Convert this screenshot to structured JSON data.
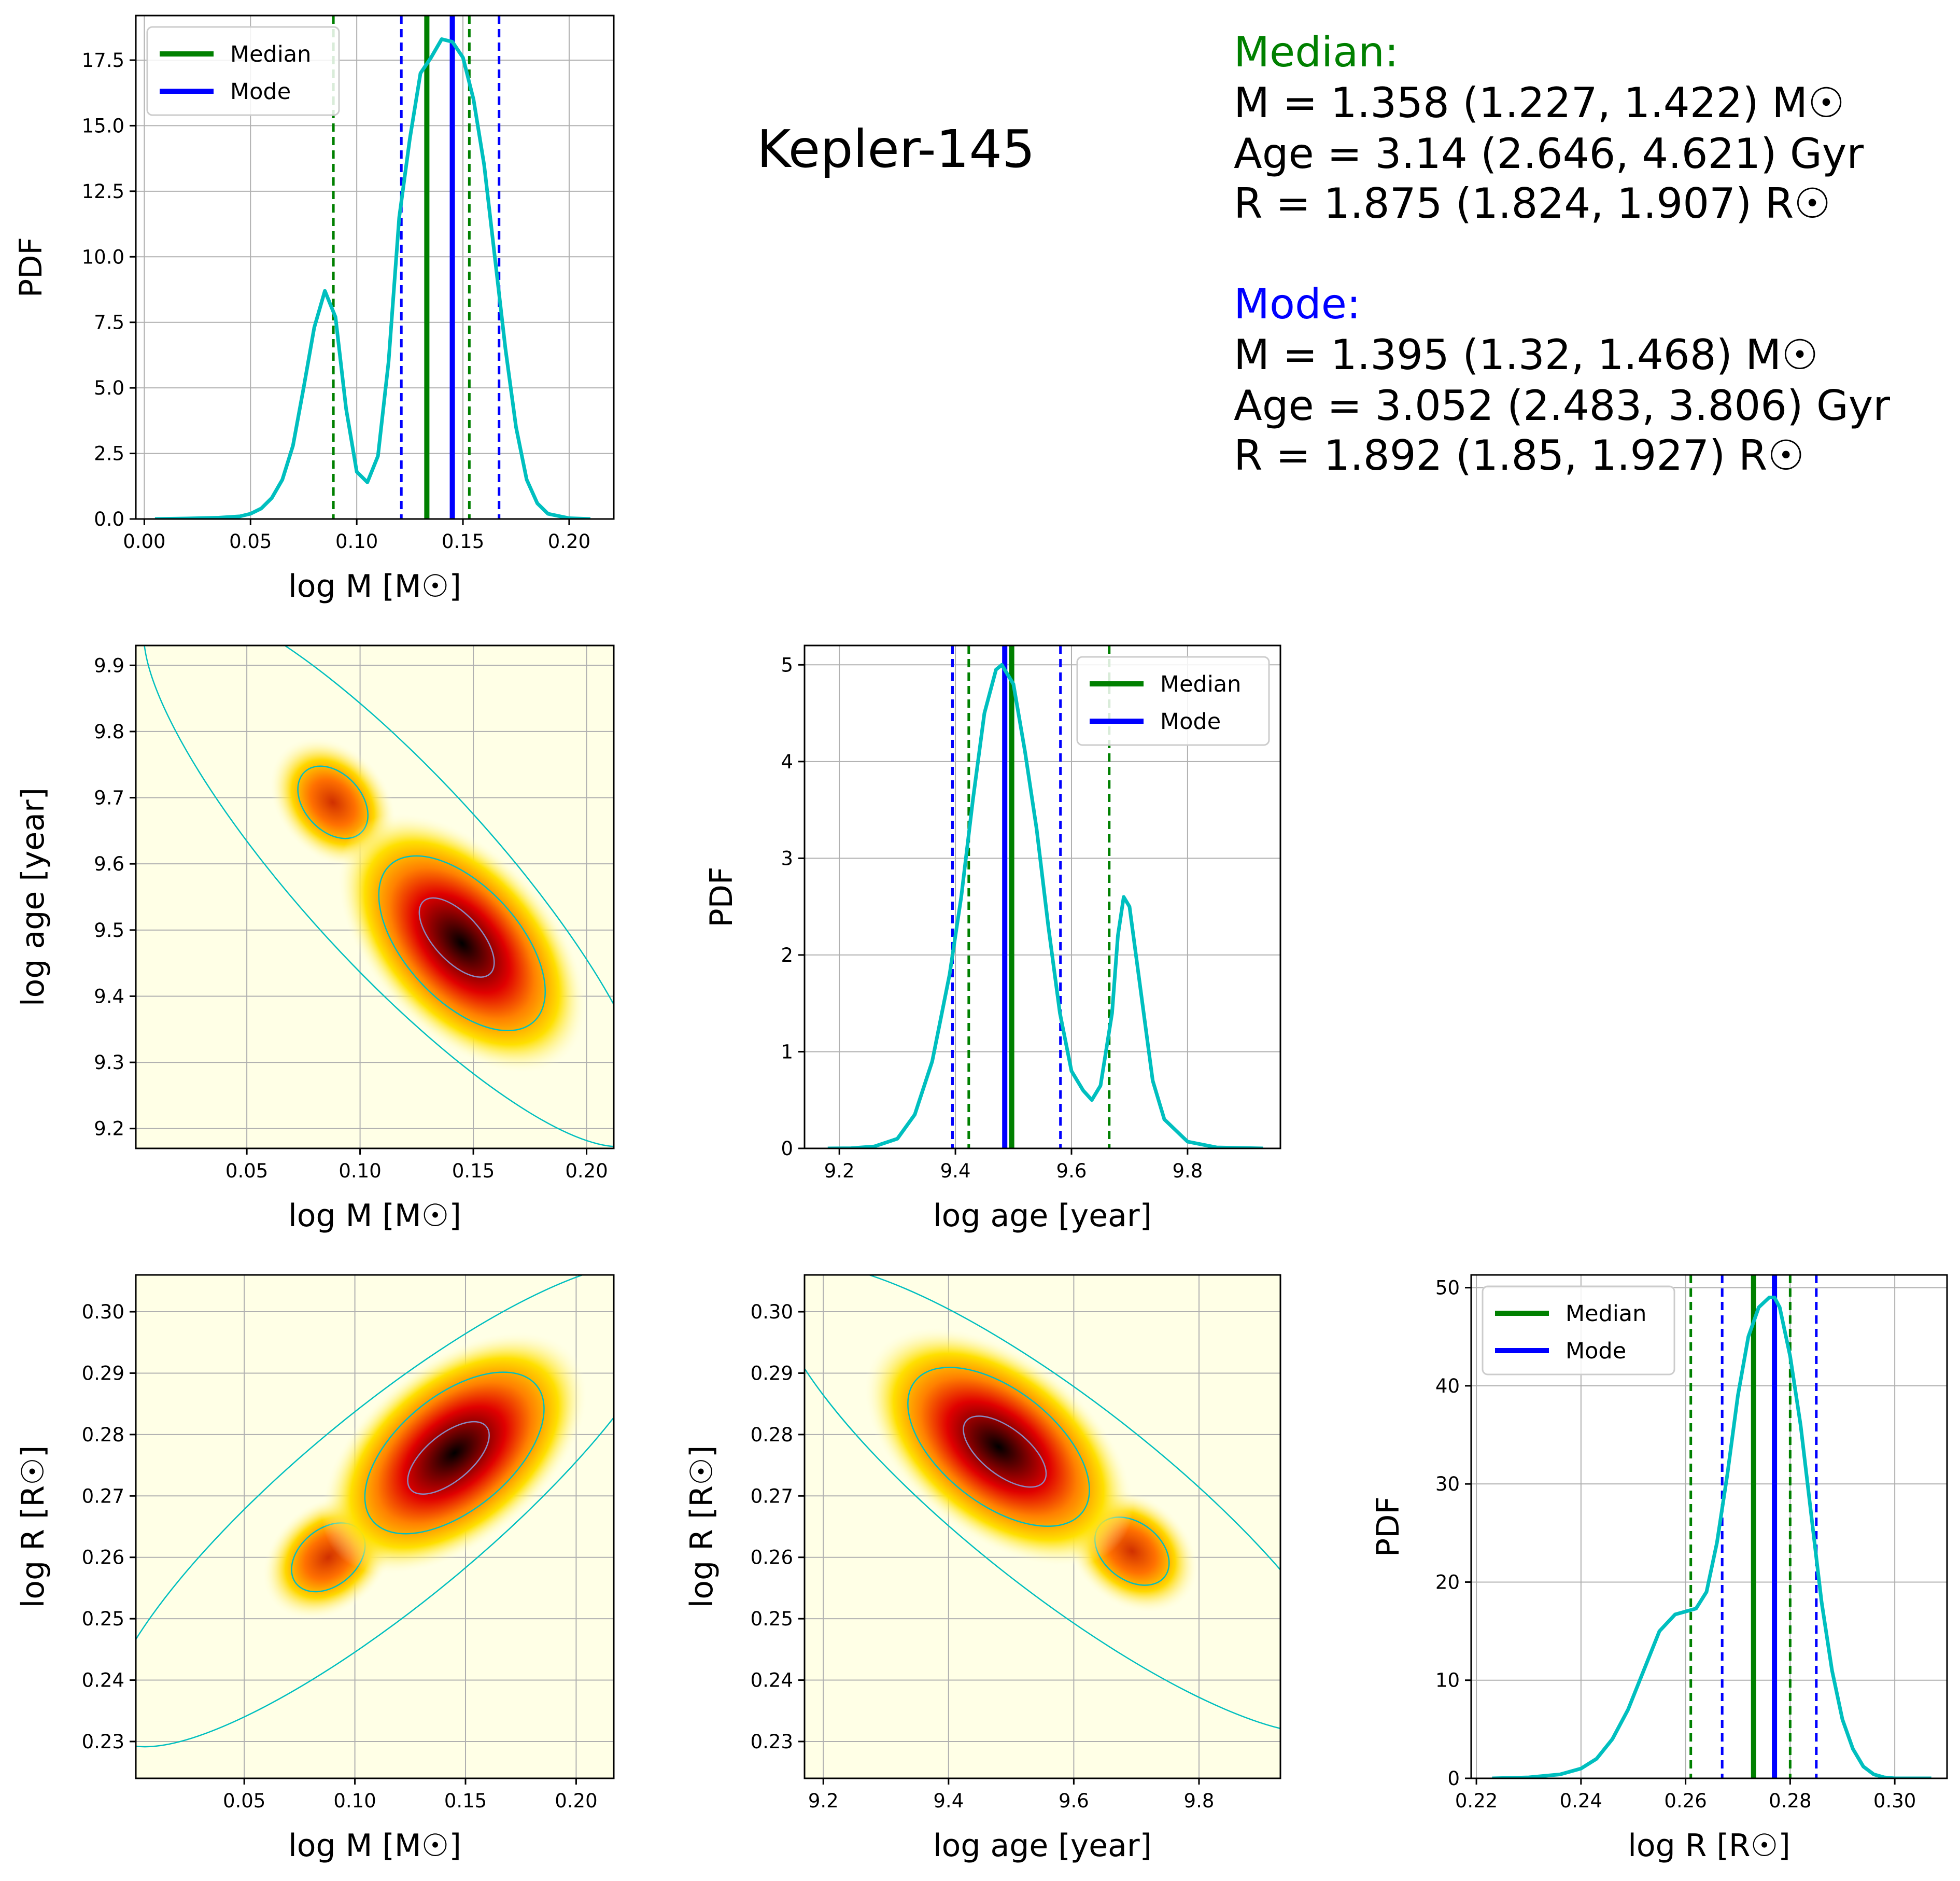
{
  "title": "Kepler-145",
  "colors": {
    "median": "#008000",
    "mode": "#0000ff",
    "pdf": "#00bfbf",
    "grid": "#b0b0b0",
    "contour": "#00bfbf"
  },
  "labels": {
    "logM": "log M [M☉]",
    "logAge": "log age [year]",
    "logR": "log R [R☉]",
    "pdf": "PDF"
  },
  "legend": {
    "median": "Median",
    "mode": "Mode"
  },
  "stats": {
    "median": {
      "heading": "Median:",
      "M": "M = 1.358 (1.227, 1.422) M☉",
      "Age": "Age = 3.14 (2.646, 4.621) Gyr",
      "R": "R = 1.875 (1.824, 1.907) R☉"
    },
    "mode": {
      "heading": "Mode:",
      "M": "M = 1.395 (1.32, 1.468) M☉",
      "Age": "Age = 3.052 (2.483, 3.806) Gyr",
      "R": "R = 1.892 (1.85, 1.927) R☉"
    }
  },
  "chart_data": [
    {
      "id": "mass_pdf",
      "type": "line",
      "xlabel": "log M [M☉]",
      "ylabel": "PDF",
      "xlim": [
        -0.004,
        0.221
      ],
      "ylim": [
        0,
        19.2
      ],
      "xticks": [
        "0.00",
        "0.05",
        "0.10",
        "0.15",
        "0.20"
      ],
      "xtick_values": [
        0,
        0.05,
        0.1,
        0.15,
        0.2
      ],
      "yticks": [
        "0.0",
        "2.5",
        "5.0",
        "7.5",
        "10.0",
        "12.5",
        "15.0",
        "17.5"
      ],
      "ytick_values": [
        0,
        2.5,
        5,
        7.5,
        10,
        12.5,
        15,
        17.5
      ],
      "legend": "top-left",
      "x": [
        0.005,
        0.02,
        0.035,
        0.045,
        0.05,
        0.055,
        0.06,
        0.065,
        0.07,
        0.075,
        0.08,
        0.085,
        0.09,
        0.095,
        0.1,
        0.105,
        0.11,
        0.115,
        0.12,
        0.125,
        0.13,
        0.135,
        0.14,
        0.145,
        0.15,
        0.155,
        0.16,
        0.165,
        0.17,
        0.175,
        0.18,
        0.185,
        0.19,
        0.2,
        0.21
      ],
      "y": [
        0,
        0.02,
        0.05,
        0.1,
        0.2,
        0.4,
        0.8,
        1.5,
        2.8,
        5,
        7.3,
        8.7,
        7.7,
        4.2,
        1.8,
        1.4,
        2.4,
        6,
        11.5,
        14.5,
        17,
        17.6,
        18.3,
        18.2,
        17.6,
        16,
        13.5,
        10,
        6.5,
        3.5,
        1.5,
        0.6,
        0.2,
        0.03,
        0
      ],
      "median": 0.133,
      "median_ci": [
        0.089,
        0.153
      ],
      "mode": 0.145,
      "mode_ci": [
        0.121,
        0.167
      ]
    },
    {
      "id": "age_pdf",
      "type": "line",
      "xlabel": "log age [year]",
      "ylabel": "PDF",
      "xlim": [
        9.14,
        9.96
      ],
      "ylim": [
        0,
        5.2
      ],
      "xticks": [
        "9.2",
        "9.4",
        "9.6",
        "9.8"
      ],
      "xtick_values": [
        9.2,
        9.4,
        9.6,
        9.8
      ],
      "yticks": [
        "0",
        "1",
        "2",
        "3",
        "4",
        "5"
      ],
      "ytick_values": [
        0,
        1,
        2,
        3,
        4,
        5
      ],
      "legend": "top-right",
      "x": [
        9.18,
        9.22,
        9.26,
        9.3,
        9.33,
        9.36,
        9.39,
        9.41,
        9.43,
        9.45,
        9.47,
        9.48,
        9.5,
        9.52,
        9.54,
        9.56,
        9.58,
        9.6,
        9.62,
        9.635,
        9.65,
        9.67,
        9.68,
        9.69,
        9.7,
        9.72,
        9.74,
        9.76,
        9.8,
        9.85,
        9.93
      ],
      "y": [
        0,
        0.002,
        0.02,
        0.1,
        0.35,
        0.9,
        1.8,
        2.6,
        3.6,
        4.5,
        4.95,
        5.0,
        4.8,
        4.1,
        3.3,
        2.3,
        1.4,
        0.8,
        0.6,
        0.5,
        0.65,
        1.4,
        2.2,
        2.6,
        2.5,
        1.6,
        0.7,
        0.3,
        0.07,
        0.01,
        0
      ],
      "median": 9.497,
      "median_ci": [
        9.423,
        9.665
      ],
      "mode": 9.485,
      "mode_ci": [
        9.395,
        9.581
      ]
    },
    {
      "id": "radius_pdf",
      "type": "line",
      "xlabel": "log R [R☉]",
      "ylabel": "PDF",
      "xlim": [
        0.219,
        0.31
      ],
      "ylim": [
        0,
        51.3
      ],
      "xticks": [
        "0.22",
        "0.24",
        "0.26",
        "0.28",
        "0.30"
      ],
      "xtick_values": [
        0.22,
        0.24,
        0.26,
        0.28,
        0.3
      ],
      "yticks": [
        "0",
        "10",
        "20",
        "30",
        "40",
        "50"
      ],
      "ytick_values": [
        0,
        10,
        20,
        30,
        40,
        50
      ],
      "legend": "top-left",
      "x": [
        0.223,
        0.23,
        0.236,
        0.24,
        0.243,
        0.246,
        0.249,
        0.252,
        0.255,
        0.258,
        0.26,
        0.262,
        0.264,
        0.266,
        0.268,
        0.27,
        0.272,
        0.274,
        0.276,
        0.277,
        0.278,
        0.28,
        0.282,
        0.284,
        0.286,
        0.288,
        0.29,
        0.292,
        0.294,
        0.296,
        0.298,
        0.3,
        0.307
      ],
      "y": [
        0,
        0.1,
        0.4,
        1,
        2,
        4,
        7,
        11,
        15,
        16.7,
        17,
        17.3,
        19,
        24,
        31,
        39,
        45,
        48,
        49,
        49,
        48,
        43,
        36,
        27,
        18,
        11,
        6,
        3,
        1.2,
        0.4,
        0.1,
        0,
        0
      ],
      "median": 0.273,
      "median_ci": [
        0.261,
        0.28
      ],
      "mode": 0.277,
      "mode_ci": [
        0.267,
        0.285
      ]
    },
    {
      "id": "mass_age_density",
      "type": "heatmap",
      "xlabel": "log M [M☉]",
      "ylabel": "log age [year]",
      "xlim": [
        0.001,
        0.212
      ],
      "ylim": [
        9.17,
        9.93
      ],
      "xticks": [
        "0.05",
        "0.10",
        "0.15",
        "0.20"
      ],
      "xtick_values": [
        0.05,
        0.1,
        0.15,
        0.2
      ],
      "yticks": [
        "9.2",
        "9.3",
        "9.4",
        "9.5",
        "9.6",
        "9.7",
        "9.8",
        "9.9"
      ],
      "ytick_values": [
        9.2,
        9.3,
        9.4,
        9.5,
        9.6,
        9.7,
        9.8,
        9.9
      ],
      "peaks": [
        {
          "x": 0.145,
          "y": 9.48,
          "weight": 1.0
        },
        {
          "x": 0.088,
          "y": 9.693,
          "weight": 0.55
        }
      ]
    },
    {
      "id": "mass_radius_density",
      "type": "heatmap",
      "xlabel": "log M [M☉]",
      "ylabel": "log R [R☉]",
      "xlim": [
        0.001,
        0.217
      ],
      "ylim": [
        0.224,
        0.306
      ],
      "xticks": [
        "0.05",
        "0.10",
        "0.15",
        "0.20"
      ],
      "xtick_values": [
        0.05,
        0.1,
        0.15,
        0.2
      ],
      "yticks": [
        "0.23",
        "0.24",
        "0.25",
        "0.26",
        "0.27",
        "0.28",
        "0.29",
        "0.30"
      ],
      "ytick_values": [
        0.23,
        0.24,
        0.25,
        0.26,
        0.27,
        0.28,
        0.29,
        0.3
      ],
      "peaks": [
        {
          "x": 0.145,
          "y": 0.277,
          "weight": 1.0
        },
        {
          "x": 0.088,
          "y": 0.26,
          "weight": 0.55
        }
      ]
    },
    {
      "id": "age_radius_density",
      "type": "heatmap",
      "xlabel": "log age [year]",
      "ylabel": "log R [R☉]",
      "xlim": [
        9.17,
        9.93
      ],
      "ylim": [
        0.224,
        0.306
      ],
      "xticks": [
        "9.2",
        "9.4",
        "9.6",
        "9.8"
      ],
      "xtick_values": [
        9.2,
        9.4,
        9.6,
        9.8
      ],
      "yticks": [
        "0.23",
        "0.24",
        "0.25",
        "0.26",
        "0.27",
        "0.28",
        "0.29",
        "0.30"
      ],
      "ytick_values": [
        0.23,
        0.24,
        0.25,
        0.26,
        0.27,
        0.28,
        0.29,
        0.3
      ],
      "peaks": [
        {
          "x": 9.48,
          "y": 0.278,
          "weight": 1.0
        },
        {
          "x": 9.693,
          "y": 0.261,
          "weight": 0.55
        }
      ]
    }
  ]
}
